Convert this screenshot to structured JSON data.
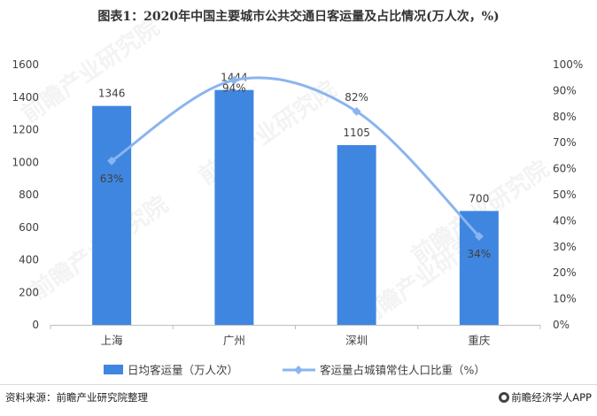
{
  "title": "图表1：2020年中国主要城市公共交通日客运量及占比情况(万人次，%)",
  "source": "资料来源：前瞻产业研究院整理",
  "brand": "前瞻经济学人APP",
  "watermark": "前瞻产业研究院",
  "colors": {
    "bar": "#3f86e0",
    "line": "#8ab4f0",
    "axis": "#595959",
    "text": "#404040"
  },
  "chart_data": {
    "type": "bar+line",
    "categories": [
      "上海",
      "广州",
      "深圳",
      "重庆"
    ],
    "series": [
      {
        "name": "日均客运量（万人次）",
        "type": "bar",
        "axis": "left",
        "values": [
          1346,
          1444,
          1105,
          700
        ]
      },
      {
        "name": "客运量占城镇常住人口比重（%）",
        "type": "line",
        "axis": "right",
        "values": [
          63,
          94,
          82,
          34
        ]
      }
    ],
    "bar_labels": [
      "1346",
      "1444",
      "1105",
      "700"
    ],
    "line_labels": [
      "63%",
      "94%",
      "82%",
      "34%"
    ],
    "y_left": {
      "min": 0,
      "max": 1600,
      "ticks": [
        "0",
        "200",
        "400",
        "600",
        "800",
        "1000",
        "1200",
        "1400",
        "1600"
      ]
    },
    "y_right": {
      "min": 0,
      "max": 100,
      "ticks": [
        "0%",
        "10%",
        "20%",
        "30%",
        "40%",
        "50%",
        "60%",
        "70%",
        "80%",
        "90%",
        "100%"
      ]
    },
    "legend": "bottom",
    "grid": false
  }
}
